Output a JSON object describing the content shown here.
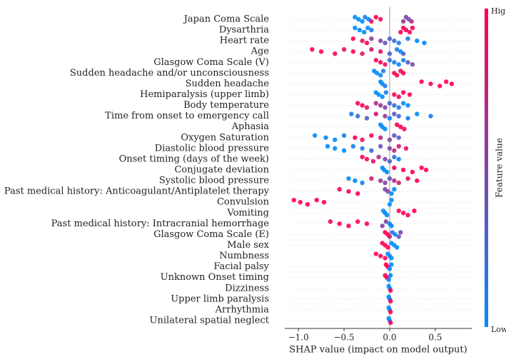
{
  "chart_data": {
    "type": "beeswarm",
    "x_label": "SHAP value (impact on model output)",
    "colorbar_label": "Feature value",
    "colorbar_high": "High",
    "colorbar_low": "Low",
    "colormap": [
      "#008bfb",
      "#ff0051"
    ],
    "xlim": [
      -1.15,
      0.9
    ],
    "xticks": [
      {
        "value": -1,
        "label": "−1.0"
      },
      {
        "value": -0.5,
        "label": "−0.5"
      },
      {
        "value": 0,
        "label": "0.0"
      },
      {
        "value": 0.5,
        "label": "0.5"
      }
    ],
    "features": [
      {
        "name": "Japan Coma Scale",
        "shap": [
          -0.38,
          -0.34,
          -0.3,
          -0.27,
          -0.23,
          -0.2,
          -0.15,
          -0.1,
          0.15,
          0.18,
          0.21,
          0.24
        ],
        "feature_value": [
          0,
          0,
          0,
          0.1,
          0,
          0.9,
          1,
          0.9,
          0.6,
          0.5,
          0.4,
          0.7
        ]
      },
      {
        "name": "Dysarthria",
        "shap": [
          -0.38,
          -0.33,
          -0.28,
          -0.24,
          -0.2,
          0.12,
          0.15,
          0.18,
          0.22,
          0.25
        ],
        "feature_value": [
          0,
          0,
          0,
          0,
          0.1,
          1,
          1,
          1,
          0.9,
          1
        ]
      },
      {
        "name": "Heart rate",
        "shap": [
          -0.4,
          -0.3,
          -0.25,
          -0.2,
          -0.1,
          -0.05,
          0,
          0.05,
          0.1,
          0.2,
          0.3,
          0.38
        ],
        "feature_value": [
          1,
          0.9,
          1,
          0.6,
          0.5,
          0.4,
          0.3,
          0.2,
          0.1,
          0.1,
          0,
          0
        ]
      },
      {
        "name": "Age",
        "shap": [
          -0.85,
          -0.75,
          -0.6,
          -0.5,
          -0.4,
          -0.3,
          -0.2,
          -0.1,
          0,
          0.08,
          0.12,
          0.15
        ],
        "feature_value": [
          1,
          1,
          1,
          0.9,
          1,
          0.9,
          0.8,
          0.9,
          0.3,
          0.1,
          0,
          0.3
        ]
      },
      {
        "name": "Glasgow Coma Scale (V)",
        "shap": [
          -0.15,
          -0.1,
          -0.05,
          0,
          0.05,
          0.1,
          0.15,
          0.2,
          0.25
        ],
        "feature_value": [
          1,
          1,
          0.9,
          0.2,
          0.1,
          0,
          0.1,
          0.3,
          0.5
        ]
      },
      {
        "name": "Sudden headache and/or unconsciousness",
        "shap": [
          -0.17,
          -0.14,
          -0.1,
          -0.07,
          0.05,
          0.08,
          0.12,
          0.15
        ],
        "feature_value": [
          0,
          0,
          0,
          0.1,
          1,
          1,
          0.9,
          1
        ]
      },
      {
        "name": "Sudden headache",
        "shap": [
          -0.1,
          -0.08,
          -0.05,
          0.35,
          0.45,
          0.55,
          0.62,
          0.68
        ],
        "feature_value": [
          0,
          0,
          0.1,
          1,
          1,
          1,
          1,
          1
        ]
      },
      {
        "name": "Hemiparalysis (upper limb)",
        "shap": [
          -0.15,
          -0.12,
          -0.08,
          -0.04,
          0.05,
          0.1,
          0.15,
          0.22
        ],
        "feature_value": [
          0,
          0,
          0,
          0.1,
          1,
          0.9,
          1,
          1
        ]
      },
      {
        "name": "Body temperature",
        "shap": [
          -0.35,
          -0.3,
          -0.25,
          -0.15,
          -0.1,
          -0.05,
          0,
          0.05,
          0.1,
          0.15,
          0.2
        ],
        "feature_value": [
          1,
          1,
          0.9,
          0.7,
          0.6,
          0.5,
          0.3,
          0.2,
          0.1,
          0,
          0
        ]
      },
      {
        "name": "Time from onset to emergency call",
        "shap": [
          -0.42,
          -0.35,
          -0.25,
          -0.15,
          -0.05,
          0,
          0.05,
          0.1,
          0.2,
          0.3,
          0.45
        ],
        "feature_value": [
          0.1,
          0.2,
          0.3,
          0.8,
          0.6,
          0,
          0.4,
          0.2,
          0.1,
          0,
          0.1
        ]
      },
      {
        "name": "Aphasia",
        "shap": [
          -0.1,
          -0.08,
          -0.05,
          0.08,
          0.12,
          0.16
        ],
        "feature_value": [
          0,
          0,
          0,
          1,
          1,
          1
        ]
      },
      {
        "name": "Oxygen Saturation",
        "shap": [
          -0.82,
          -0.7,
          -0.6,
          -0.5,
          -0.38,
          -0.3,
          -0.2,
          -0.1,
          0,
          0.05,
          0.1
        ],
        "feature_value": [
          0,
          0,
          0,
          0.1,
          1,
          0.9,
          1,
          0.7,
          0.5,
          0.4,
          0.3
        ]
      },
      {
        "name": "Diastolic blood pressure",
        "shap": [
          -0.68,
          -0.6,
          -0.5,
          -0.4,
          -0.3,
          -0.2,
          -0.1,
          0,
          0.05,
          0.1,
          0.18
        ],
        "feature_value": [
          0,
          0,
          0,
          0.1,
          0.1,
          0.2,
          0.4,
          0.5,
          0.7,
          0.8,
          0.9
        ]
      },
      {
        "name": "Onset timing (days of the week)",
        "shap": [
          -0.3,
          -0.25,
          -0.18,
          -0.12,
          -0.05,
          0,
          0.05,
          0.1
        ],
        "feature_value": [
          1,
          1,
          0.9,
          0.7,
          0.5,
          0.3,
          0.2,
          0
        ]
      },
      {
        "name": "Conjugate deviation",
        "shap": [
          -0.08,
          -0.06,
          -0.03,
          0.05,
          0.15,
          0.25,
          0.35,
          0.4
        ],
        "feature_value": [
          0,
          0,
          0,
          1,
          1,
          1,
          1,
          1
        ]
      },
      {
        "name": "Systolic blood pressure",
        "shap": [
          -0.45,
          -0.38,
          -0.3,
          -0.2,
          -0.1,
          -0.05,
          0,
          0.05,
          0.1,
          0.2,
          0.3
        ],
        "feature_value": [
          0,
          0,
          0.1,
          0.8,
          0.6,
          0.5,
          0.4,
          0.7,
          0.8,
          0.9,
          1
        ]
      },
      {
        "name": "Past medical history: Anticoagulant/Antiplatelet therapy",
        "shap": [
          -0.55,
          -0.45,
          -0.35,
          -0.05,
          -0.02,
          0.02,
          0.05
        ],
        "feature_value": [
          1,
          1,
          1,
          0.5,
          0.5,
          0,
          0
        ]
      },
      {
        "name": "Convulsion",
        "shap": [
          -1.05,
          -0.98,
          -0.9,
          -0.8,
          -0.72,
          0,
          0.02
        ],
        "feature_value": [
          1,
          1,
          1,
          1,
          1,
          0,
          0
        ]
      },
      {
        "name": "Vomiting",
        "shap": [
          -0.07,
          -0.05,
          -0.03,
          0.1,
          0.15,
          0.2,
          0.27
        ],
        "feature_value": [
          0,
          0,
          0,
          1,
          1,
          1,
          1
        ]
      },
      {
        "name": "Past medical history: Intracranial hemorrhage",
        "shap": [
          -0.65,
          -0.55,
          -0.45,
          -0.35,
          -0.25,
          -0.08,
          -0.04,
          0,
          0.02
        ],
        "feature_value": [
          1,
          1,
          1,
          1,
          1,
          0.5,
          0.5,
          0,
          0
        ]
      },
      {
        "name": "Glasgow Coma Scale (E)",
        "shap": [
          -0.05,
          -0.02,
          0,
          0.03,
          0.06,
          0.1,
          0.12
        ],
        "feature_value": [
          1,
          1,
          0.8,
          0.2,
          0,
          0.4,
          0.5
        ]
      },
      {
        "name": "Male sex",
        "shap": [
          -0.08,
          -0.05,
          -0.02,
          0.02,
          0.05,
          0.08
        ],
        "feature_value": [
          1,
          1,
          1,
          0,
          0,
          0
        ]
      },
      {
        "name": "Numbness",
        "shap": [
          -0.15,
          -0.1,
          -0.05,
          -0.02,
          0,
          0.02
        ],
        "feature_value": [
          1,
          1,
          1,
          0,
          0,
          0
        ]
      },
      {
        "name": "Facial palsy",
        "shap": [
          -0.04,
          -0.02,
          0,
          0.02
        ],
        "feature_value": [
          1,
          1,
          0,
          0
        ]
      },
      {
        "name": "Unknown Onset timing",
        "shap": [
          -0.05,
          -0.03,
          -0.01,
          0.01
        ],
        "feature_value": [
          1,
          1,
          0,
          0
        ]
      },
      {
        "name": "Dizziness",
        "shap": [
          -0.01,
          0,
          0.01
        ],
        "feature_value": [
          0,
          0,
          1
        ]
      },
      {
        "name": "Upper limb paralysis",
        "shap": [
          -0.01,
          0,
          0.01
        ],
        "feature_value": [
          0,
          0,
          1
        ]
      },
      {
        "name": "Arrhythmia",
        "shap": [
          -0.01,
          0,
          0.01
        ],
        "feature_value": [
          0,
          0,
          1
        ]
      },
      {
        "name": "Unilateral spatial neglect",
        "shap": [
          -0.01,
          0,
          0.01
        ],
        "feature_value": [
          0,
          0,
          1
        ]
      }
    ]
  }
}
